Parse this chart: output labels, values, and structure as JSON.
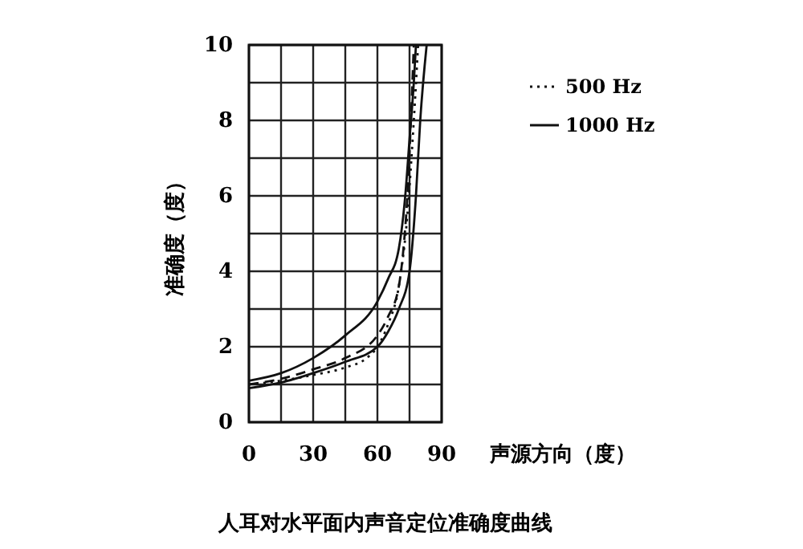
{
  "chart_data": {
    "type": "line",
    "title": "人耳对水平面内声音定位准确度曲线",
    "xlabel": "声源方向（度）",
    "ylabel": "准确度（度）",
    "xlim": [
      0,
      90
    ],
    "ylim": [
      0,
      10
    ],
    "xticks": [
      0,
      {
        "value": 15,
        "label": null
      },
      30,
      {
        "value": 45,
        "label": null
      },
      60,
      {
        "value": 75,
        "label": null
      },
      90
    ],
    "yticks": [
      0,
      {
        "value": 1,
        "label": null
      },
      2,
      {
        "value": 3,
        "label": null
      },
      4,
      {
        "value": 5,
        "label": null
      },
      6,
      {
        "value": 7,
        "label": null
      },
      8,
      {
        "value": 9,
        "label": null
      },
      10
    ],
    "grid": true,
    "legend": "top right",
    "series": [
      {
        "name": "500 Hz",
        "color": "#111111",
        "line_style": "dotted",
        "x": [
          0,
          15,
          30,
          45,
          55,
          60,
          65,
          70,
          74,
          77,
          79
        ],
        "values": [
          1.0,
          1.1,
          1.25,
          1.45,
          1.7,
          2.0,
          2.6,
          3.6,
          5.5,
          8,
          10
        ]
      },
      {
        "name": "1000 Hz",
        "color": "#111111",
        "line_style": "solid",
        "x": [
          0,
          15,
          30,
          45,
          60,
          65,
          70,
          73,
          75,
          77,
          78
        ],
        "values": [
          1.1,
          1.3,
          1.7,
          2.3,
          3.2,
          3.8,
          4.6,
          6,
          7.5,
          9,
          10
        ]
      },
      {
        "color": "#111111",
        "line_style": "solid",
        "x": [
          0,
          15,
          30,
          45,
          60,
          65,
          70,
          75,
          78,
          80,
          83
        ],
        "values": [
          0.9,
          1.05,
          1.3,
          1.6,
          2.0,
          2.4,
          3.0,
          4.0,
          6,
          8,
          10
        ]
      },
      {
        "color": "#111111",
        "line_style": "dashed",
        "x": [
          0,
          15,
          30,
          45,
          60,
          65,
          70,
          72,
          74,
          76,
          77
        ],
        "values": [
          1.0,
          1.15,
          1.4,
          1.7,
          2.3,
          2.8,
          3.6,
          4.5,
          6,
          8.5,
          10
        ]
      }
    ]
  }
}
